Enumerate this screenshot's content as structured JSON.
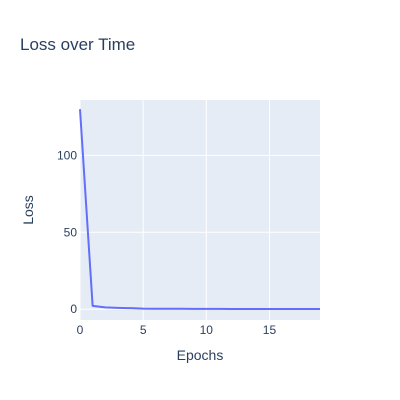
{
  "chart_data": {
    "type": "line",
    "title": "Loss over Time",
    "xlabel": "Epochs",
    "ylabel": "Loss",
    "xlim": [
      0,
      19
    ],
    "ylim": [
      -7,
      136
    ],
    "x_ticks": [
      0,
      5,
      10,
      15
    ],
    "y_ticks": [
      0,
      50,
      100
    ],
    "grid": true,
    "legend": "none",
    "series": [
      {
        "x": [
          0,
          1,
          2,
          3,
          4,
          5,
          6,
          7,
          8,
          9,
          10,
          11,
          12,
          13,
          14,
          15,
          16,
          17,
          18,
          19
        ],
        "values": [
          130,
          2.2,
          1.2,
          0.9,
          0.7,
          0.4,
          0.35,
          0.3,
          0.28,
          0.25,
          0.22,
          0.2,
          0.19,
          0.18,
          0.17,
          0.16,
          0.15,
          0.15,
          0.14,
          0.14
        ],
        "color": "#636efa"
      }
    ],
    "colors": {
      "plot_background": "#e5ecf6",
      "grid": "#ffffff",
      "text": "#2a3f5f",
      "line": "#636efa"
    }
  }
}
